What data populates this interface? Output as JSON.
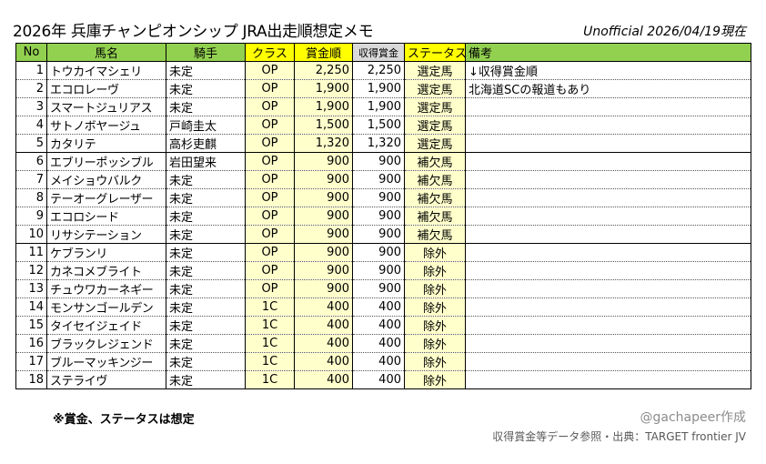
{
  "title": "2026年 兵庫チャンピオンシップ JRA出走順想定メモ",
  "subtitle": "Unofficial 2026/04/19現在",
  "columns": [
    "No",
    "馬名",
    "騎手",
    "クラス",
    "賞金順",
    "収得賞金",
    "ステータス",
    "備考"
  ],
  "rows": [
    {
      "no": "1",
      "name": "トウカイマシェリ",
      "jockey": "未定",
      "class": "OP",
      "prize_rank": "2,250",
      "earnings": "2,250",
      "status": "選定馬",
      "note": "↓収得賞金順"
    },
    {
      "no": "2",
      "name": "エコロレーヴ",
      "jockey": "未定",
      "class": "OP",
      "prize_rank": "1,900",
      "earnings": "1,900",
      "status": "選定馬",
      "note": "北海道SCの報道もあり"
    },
    {
      "no": "3",
      "name": "スマートジュリアス",
      "jockey": "未定",
      "class": "OP",
      "prize_rank": "1,900",
      "earnings": "1,900",
      "status": "選定馬",
      "note": ""
    },
    {
      "no": "4",
      "name": "サトノボヤージュ",
      "jockey": "戸崎圭太",
      "class": "OP",
      "prize_rank": "1,500",
      "earnings": "1,500",
      "status": "選定馬",
      "note": ""
    },
    {
      "no": "5",
      "name": "カタリテ",
      "jockey": "高杉吏麒",
      "class": "OP",
      "prize_rank": "1,320",
      "earnings": "1,320",
      "status": "選定馬",
      "note": ""
    },
    {
      "no": "6",
      "name": "エブリーポッシブル",
      "jockey": "岩田望来",
      "class": "OP",
      "prize_rank": "900",
      "earnings": "900",
      "status": "補欠馬",
      "note": ""
    },
    {
      "no": "7",
      "name": "メイショウバルク",
      "jockey": "未定",
      "class": "OP",
      "prize_rank": "900",
      "earnings": "900",
      "status": "補欠馬",
      "note": ""
    },
    {
      "no": "8",
      "name": "テーオーグレーザー",
      "jockey": "未定",
      "class": "OP",
      "prize_rank": "900",
      "earnings": "900",
      "status": "補欠馬",
      "note": ""
    },
    {
      "no": "9",
      "name": "エコロシード",
      "jockey": "未定",
      "class": "OP",
      "prize_rank": "900",
      "earnings": "900",
      "status": "補欠馬",
      "note": ""
    },
    {
      "no": "10",
      "name": "リサシテーション",
      "jockey": "未定",
      "class": "OP",
      "prize_rank": "900",
      "earnings": "900",
      "status": "補欠馬",
      "note": ""
    },
    {
      "no": "11",
      "name": "ケブランリ",
      "jockey": "未定",
      "class": "OP",
      "prize_rank": "900",
      "earnings": "900",
      "status": "除外",
      "note": ""
    },
    {
      "no": "12",
      "name": "カネコメブライト",
      "jockey": "未定",
      "class": "OP",
      "prize_rank": "900",
      "earnings": "900",
      "status": "除外",
      "note": ""
    },
    {
      "no": "13",
      "name": "チュウワカーネギー",
      "jockey": "未定",
      "class": "OP",
      "prize_rank": "900",
      "earnings": "900",
      "status": "除外",
      "note": ""
    },
    {
      "no": "14",
      "name": "モンサンゴールデン",
      "jockey": "未定",
      "class": "1C",
      "prize_rank": "400",
      "earnings": "400",
      "status": "除外",
      "note": ""
    },
    {
      "no": "15",
      "name": "タイセイジェイド",
      "jockey": "未定",
      "class": "1C",
      "prize_rank": "400",
      "earnings": "400",
      "status": "除外",
      "note": ""
    },
    {
      "no": "16",
      "name": "ブラックレジェンド",
      "jockey": "未定",
      "class": "1C",
      "prize_rank": "400",
      "earnings": "400",
      "status": "除外",
      "note": ""
    },
    {
      "no": "17",
      "name": "ブルーマッキンジー",
      "jockey": "未定",
      "class": "1C",
      "prize_rank": "400",
      "earnings": "400",
      "status": "除外",
      "note": ""
    },
    {
      "no": "18",
      "name": "ステライヴ",
      "jockey": "未定",
      "class": "1C",
      "prize_rank": "400",
      "earnings": "400",
      "status": "除外",
      "note": ""
    }
  ],
  "footnote": "※賞金、ステータスは想定",
  "credit": "@gachapeer作成",
  "source": "収得賞金等データ参照・出典：TARGET frontier JV",
  "colors": {
    "header_green": "#92d050",
    "header_yellow": "#ffff00",
    "header_gray": "#d9d9d9",
    "cell_yellow": "#ffffcc"
  }
}
